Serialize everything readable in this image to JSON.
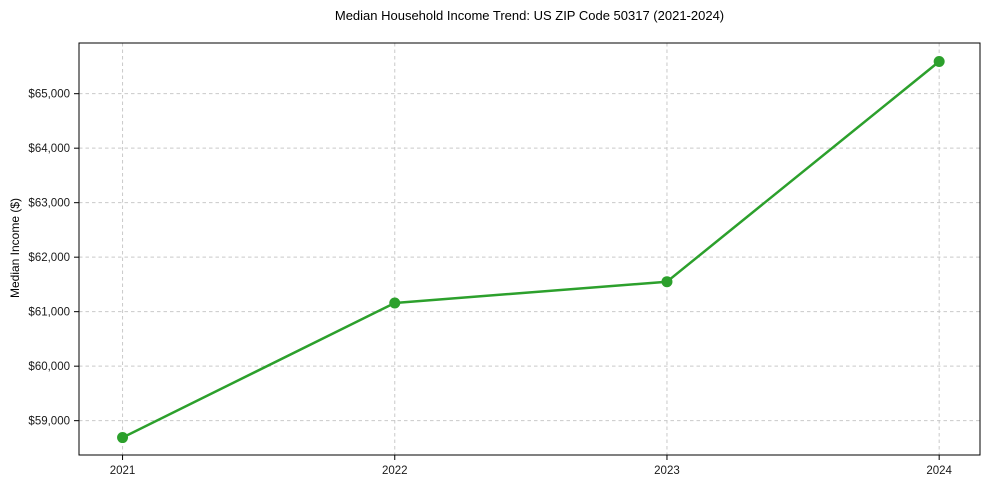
{
  "chart_data": {
    "type": "line",
    "title": "Median Household Income Trend: US ZIP Code 50317 (2021-2024)",
    "xlabel": "",
    "ylabel": "Median Income ($)",
    "x": [
      2021,
      2022,
      2023,
      2024
    ],
    "series": [
      {
        "name": "Median Household Income",
        "values": [
          58690,
          61160,
          61550,
          65590
        ]
      }
    ],
    "xticks": [
      2021,
      2022,
      2023,
      2024
    ],
    "xtick_labels": [
      "2021",
      "2022",
      "2023",
      "2024"
    ],
    "yticks": [
      59000,
      60000,
      61000,
      62000,
      63000,
      64000,
      65000
    ],
    "ytick_labels": [
      "$59,000",
      "$60,000",
      "$61,000",
      "$62,000",
      "$63,000",
      "$64,000",
      "$65,000"
    ],
    "xlim": [
      2020.84,
      2024.15
    ],
    "ylim": [
      58370,
      65930
    ],
    "grid": true,
    "grid_style": "dashed",
    "legend": false,
    "colors": {
      "line": "#2ca02c",
      "marker": "#2ca02c",
      "grid": "#c9c9c9",
      "spine": "#000000",
      "tick_label": "#1a1a1a",
      "background": "#ffffff"
    },
    "marker": "circle",
    "marker_radius": 5.5,
    "line_width": 2.5
  }
}
